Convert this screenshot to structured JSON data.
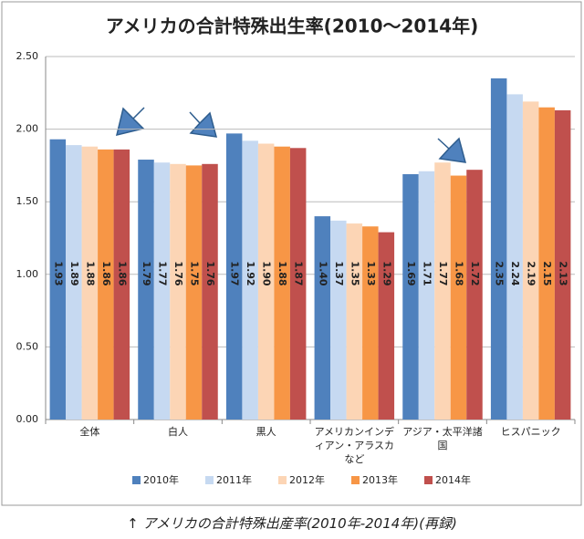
{
  "chart_data": {
    "type": "bar",
    "title": "アメリカの合計特殊出生率(2010～2014年)",
    "caption": "↑ アメリカの合計特殊出産率(2010年-2014年)(再録)",
    "categories": [
      "全体",
      "白人",
      "黒人",
      "アメリカンインディアン・アラスカなど",
      "アジア・太平洋諸国",
      "ヒスパニック"
    ],
    "series": [
      {
        "name": "2010年",
        "color": "#4f81bd",
        "values": [
          1.93,
          1.79,
          1.97,
          1.4,
          1.69,
          2.35
        ],
        "value_labels": [
          "1.93",
          "1.79",
          "1.97",
          "1.40",
          "1.69",
          "2.35"
        ]
      },
      {
        "name": "2011年",
        "color": "#c6d9f1",
        "values": [
          1.89,
          1.77,
          1.92,
          1.37,
          1.71,
          2.24
        ],
        "value_labels": [
          "1.89",
          "1.77",
          "1.92",
          "1.37",
          "1.71",
          "2.24"
        ]
      },
      {
        "name": "2012年",
        "color": "#fcd5b5",
        "values": [
          1.88,
          1.76,
          1.9,
          1.35,
          1.77,
          2.19
        ],
        "value_labels": [
          "1.88",
          "1.76",
          "1.90",
          "1.35",
          "1.77",
          "2.19"
        ]
      },
      {
        "name": "2013年",
        "color": "#f79646",
        "values": [
          1.86,
          1.75,
          1.88,
          1.33,
          1.68,
          2.15
        ],
        "value_labels": [
          "1.86",
          "1.75",
          "1.88",
          "1.33",
          "1.68",
          "2.15"
        ]
      },
      {
        "name": "2014年",
        "color": "#c0504d",
        "values": [
          1.86,
          1.76,
          1.87,
          1.29,
          1.72,
          2.13
        ],
        "value_labels": [
          "1.86",
          "1.76",
          "1.87",
          "1.29",
          "1.72",
          "2.13"
        ]
      }
    ],
    "ylim": [
      0,
      2.5
    ],
    "yticks": [
      {
        "value": 0,
        "label": "0.00"
      },
      {
        "value": 0.5,
        "label": "0.50"
      },
      {
        "value": 1,
        "label": "1.00"
      },
      {
        "value": 1.5,
        "label": "1.50"
      },
      {
        "value": 2,
        "label": "2.00"
      },
      {
        "value": 2.5,
        "label": "2.50"
      }
    ],
    "grid": true
  }
}
